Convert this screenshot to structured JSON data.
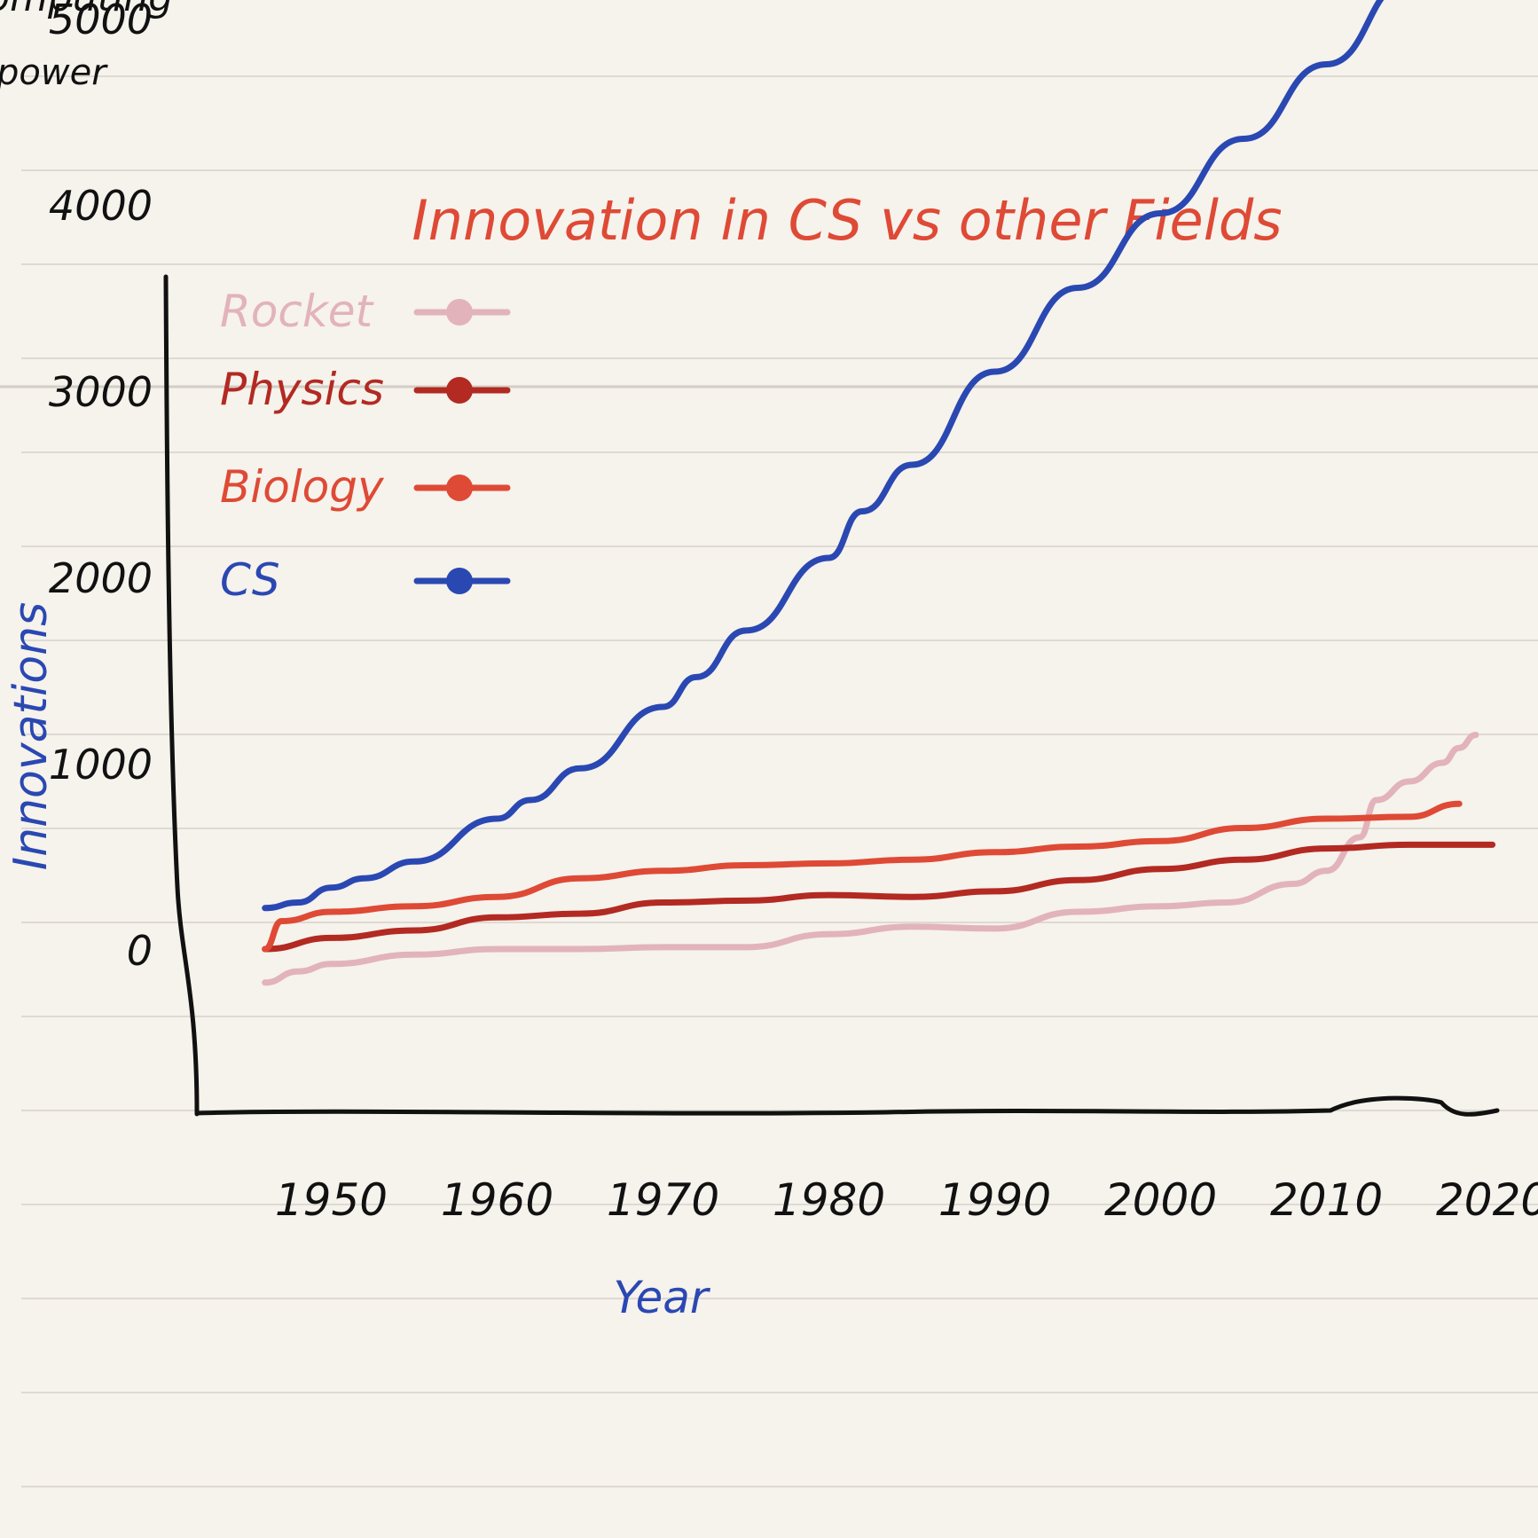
{
  "page": {
    "corner_note": [
      "computing",
      "power"
    ]
  },
  "chart_data": {
    "type": "line",
    "title": "Innovation in CS vs other Fields",
    "xlabel": "Year",
    "ylabel": "Innovations",
    "x_ticks": [
      "1950",
      "1960",
      "1970",
      "1980",
      "1990",
      "2000",
      "2010",
      "2020"
    ],
    "y_ticks": [
      "0",
      "1000",
      "2000",
      "3000",
      "4000",
      "5000"
    ],
    "xlim": [
      1945,
      2022
    ],
    "ylim": [
      -500,
      5000
    ],
    "grid": false,
    "legend_position": "top-left",
    "series": [
      {
        "name": "Rocket",
        "color": "#e2b3bb",
        "x": [
          1946,
          1948,
          1950,
          1955,
          1960,
          1965,
          1970,
          1975,
          1980,
          1985,
          1990,
          1995,
          2000,
          2004,
          2008,
          2010,
          2012,
          2013,
          2015,
          2017,
          2018,
          2019
        ],
        "y": [
          -180,
          -120,
          -80,
          -30,
          0,
          0,
          10,
          10,
          80,
          120,
          110,
          200,
          230,
          250,
          350,
          420,
          600,
          800,
          900,
          1000,
          1080,
          1150
        ]
      },
      {
        "name": "Physics",
        "color": "#b22a22",
        "x": [
          1946,
          1950,
          1955,
          1960,
          1965,
          1970,
          1975,
          1980,
          1985,
          1990,
          1995,
          2000,
          2005,
          2010,
          2015,
          2020
        ],
        "y": [
          0,
          60,
          100,
          170,
          190,
          250,
          260,
          290,
          280,
          310,
          370,
          430,
          480,
          540,
          560,
          560
        ]
      },
      {
        "name": "Biology",
        "color": "#de4a35",
        "x": [
          1946,
          1947,
          1950,
          1955,
          1960,
          1965,
          1970,
          1975,
          1980,
          1985,
          1990,
          1995,
          2000,
          2005,
          2010,
          2015,
          2018
        ],
        "y": [
          0,
          150,
          200,
          230,
          280,
          380,
          420,
          450,
          460,
          480,
          520,
          550,
          580,
          650,
          700,
          710,
          780
        ]
      },
      {
        "name": "CS",
        "color": "#2a48b2",
        "x": [
          1946,
          1948,
          1950,
          1952,
          1955,
          1960,
          1962,
          1965,
          1970,
          1972,
          1975,
          1980,
          1982,
          1985,
          1990,
          1995,
          2000,
          2005,
          2010,
          2015,
          2017
        ],
        "y": [
          220,
          250,
          330,
          380,
          470,
          700,
          800,
          970,
          1300,
          1460,
          1710,
          2100,
          2350,
          2600,
          3100,
          3550,
          3950,
          4350,
          4750,
          5200,
          5350
        ]
      }
    ]
  }
}
